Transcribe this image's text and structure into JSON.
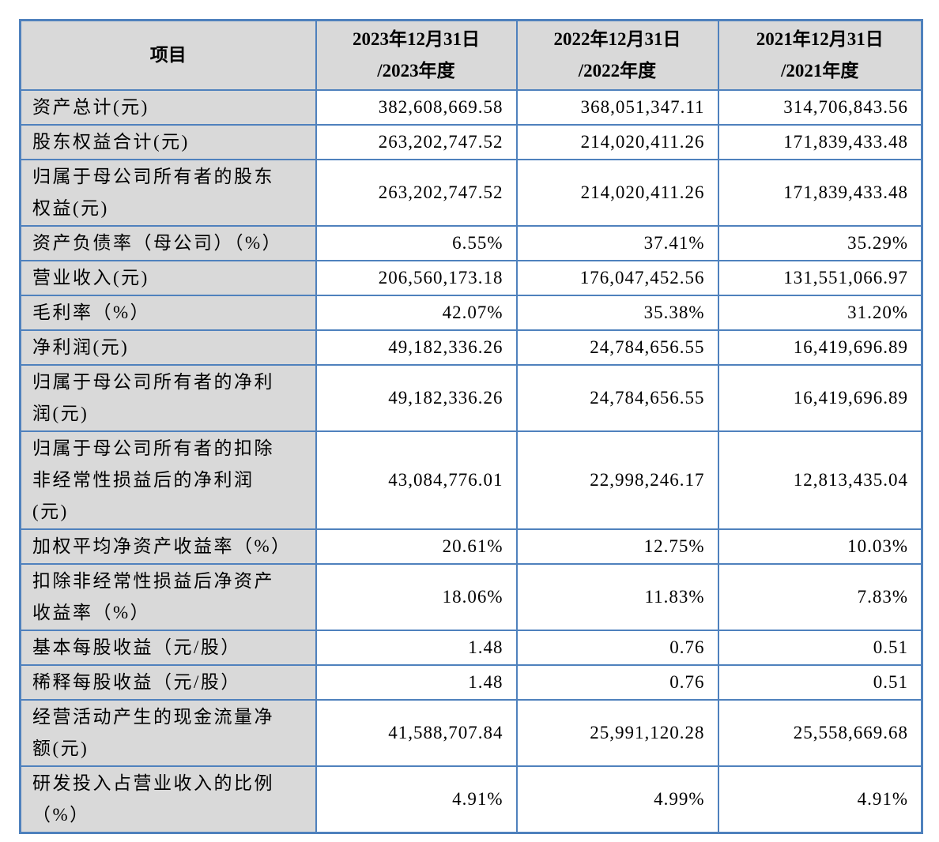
{
  "colors": {
    "table_border": "#4F81BD",
    "header_fill": "#D9D9D9",
    "row_label_fill": "#D9D9D9",
    "text": "#000000",
    "page_background": "#ffffff"
  },
  "table": {
    "header": {
      "item_label": "项目",
      "periods": [
        "2023年12月31日\n/2023年度",
        "2022年12月31日\n/2022年度",
        "2021年12月31日\n/2021年度"
      ]
    },
    "rows": [
      {
        "label": "资产总计(元)",
        "values": [
          "382,608,669.58",
          "368,051,347.11",
          "314,706,843.56"
        ]
      },
      {
        "label": "股东权益合计(元)",
        "values": [
          "263,202,747.52",
          "214,020,411.26",
          "171,839,433.48"
        ]
      },
      {
        "label": "归属于母公司所有者的股东\n权益(元)",
        "values": [
          "263,202,747.52",
          "214,020,411.26",
          "171,839,433.48"
        ]
      },
      {
        "label": "资产负债率（母公司）（%）",
        "values": [
          "6.55%",
          "37.41%",
          "35.29%"
        ]
      },
      {
        "label": "营业收入(元)",
        "values": [
          "206,560,173.18",
          "176,047,452.56",
          "131,551,066.97"
        ]
      },
      {
        "label": "毛利率（%）",
        "values": [
          "42.07%",
          "35.38%",
          "31.20%"
        ]
      },
      {
        "label": "净利润(元)",
        "values": [
          "49,182,336.26",
          "24,784,656.55",
          "16,419,696.89"
        ]
      },
      {
        "label": "归属于母公司所有者的净利\n润(元)",
        "values": [
          "49,182,336.26",
          "24,784,656.55",
          "16,419,696.89"
        ]
      },
      {
        "label": "归属于母公司所有者的扣除\n非经常性损益后的净利润\n(元)",
        "values": [
          "43,084,776.01",
          "22,998,246.17",
          "12,813,435.04"
        ]
      },
      {
        "label": "加权平均净资产收益率（%）",
        "values": [
          "20.61%",
          "12.75%",
          "10.03%"
        ]
      },
      {
        "label": "扣除非经常性损益后净资产\n收益率（%）",
        "values": [
          "18.06%",
          "11.83%",
          "7.83%"
        ]
      },
      {
        "label": "基本每股收益（元/股）",
        "values": [
          "1.48",
          "0.76",
          "0.51"
        ]
      },
      {
        "label": "稀释每股收益（元/股）",
        "values": [
          "1.48",
          "0.76",
          "0.51"
        ]
      },
      {
        "label": "经营活动产生的现金流量净\n额(元)",
        "values": [
          "41,588,707.84",
          "25,991,120.28",
          "25,558,669.68"
        ]
      },
      {
        "label": "研发投入占营业收入的比例\n（%）",
        "values": [
          "4.91%",
          "4.99%",
          "4.91%"
        ]
      }
    ]
  }
}
